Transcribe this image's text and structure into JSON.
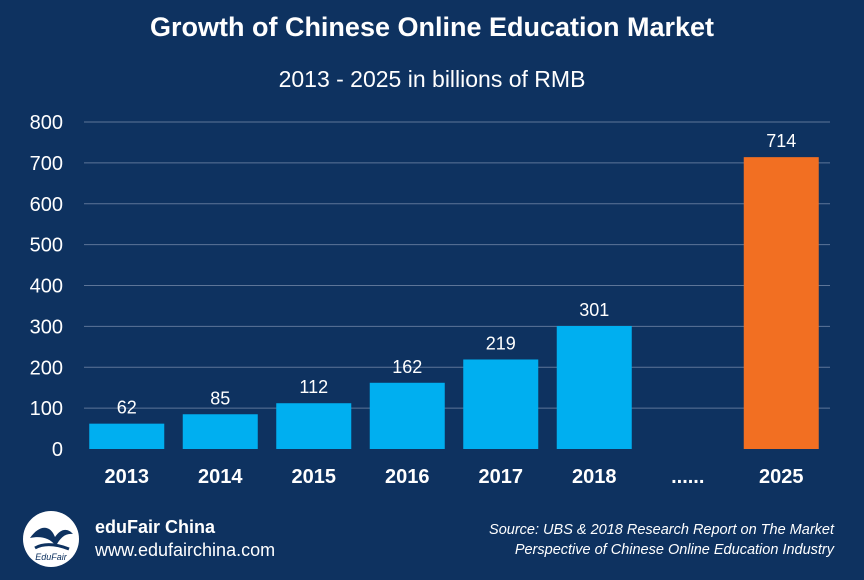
{
  "header": {
    "title": "Growth of Chinese Online Education Market",
    "subtitle": "2013 - 2025 in billions of RMB"
  },
  "chart_data": {
    "type": "bar",
    "categories": [
      "2013",
      "2014",
      "2015",
      "2016",
      "2017",
      "2018",
      "......",
      "2025"
    ],
    "values": [
      62,
      85,
      112,
      162,
      219,
      301,
      null,
      714
    ],
    "data_labels": [
      "62",
      "85",
      "112",
      "162",
      "219",
      "301",
      "",
      "714"
    ],
    "title": "Growth of Chinese Online Education Market",
    "subtitle": "2013 - 2025 in billions of RMB",
    "xlabel": "",
    "ylabel": "",
    "ylim": [
      0,
      800
    ],
    "yticks": [
      "0",
      "100",
      "200",
      "300",
      "400",
      "500",
      "600",
      "700",
      "800"
    ],
    "grid": "horizontal",
    "legend": "none",
    "bar_colors": [
      "#00aff0",
      "#00aff0",
      "#00aff0",
      "#00aff0",
      "#00aff0",
      "#00aff0",
      "#00aff0",
      "#f26f22"
    ]
  },
  "footer": {
    "logo_icon": "edufair-logo-icon",
    "logo_text": "EduFair",
    "brand_name": "eduFair China",
    "url": "www.edufairchina.com",
    "source_line1": "Source: UBS & 2018 Research Report on The Market",
    "source_line2": "Perspective of Chinese Online Education Industry"
  },
  "colors": {
    "background": "#0e3260",
    "bar": "#00aff0",
    "highlight_bar": "#f26f22",
    "grid": "#5d7598",
    "text": "#ffffff"
  }
}
